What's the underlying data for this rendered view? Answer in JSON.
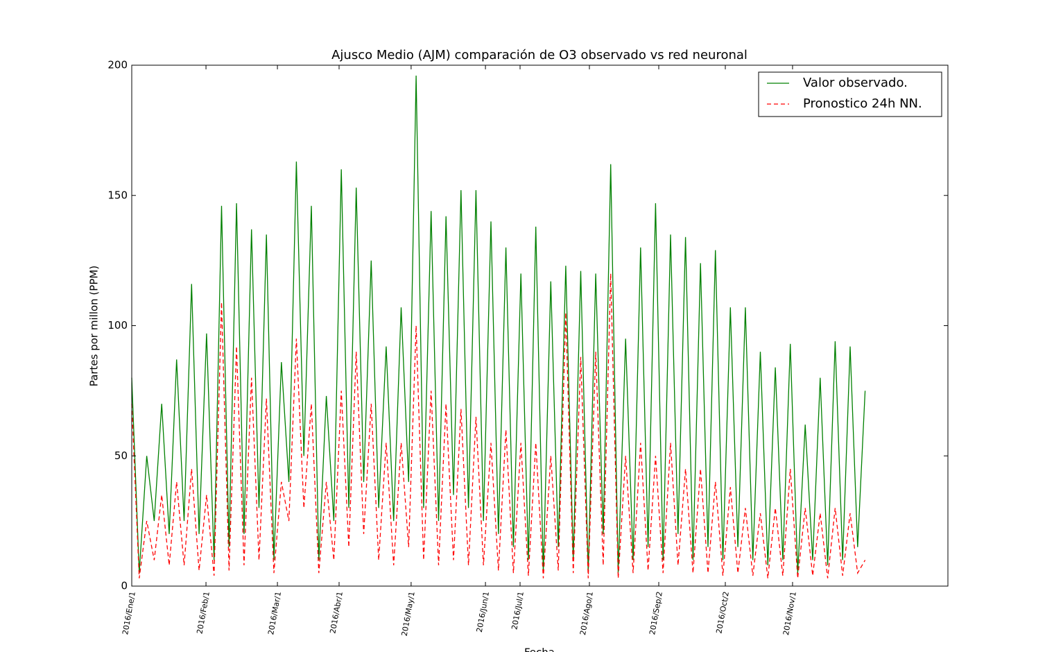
{
  "chart_data": {
    "type": "line",
    "title": "Ajusco Medio (AJM) comparación de O3 observado vs red neuronal",
    "x_label": "Fecha",
    "y_label": "Partes por millon (PPM)",
    "x": [
      0,
      75,
      150,
      225,
      300,
      375,
      450,
      525,
      600,
      675,
      750,
      825,
      900,
      975,
      1050,
      1125,
      1200,
      1275,
      1350,
      1425,
      1500,
      1575,
      1650,
      1725,
      1800,
      1875,
      1950,
      2025,
      2100,
      2175,
      2250,
      2325,
      2400,
      2475,
      2550,
      2625,
      2700,
      2775,
      2850,
      2925,
      3000,
      3075,
      3150,
      3225,
      3300,
      3375,
      3450,
      3525,
      3600,
      3675,
      3750,
      3825,
      3900,
      3975,
      4050,
      4125,
      4200,
      4275,
      4350,
      4425,
      4500,
      4575,
      4650,
      4725,
      4800,
      4875,
      4950,
      5025,
      5100,
      5175,
      5250,
      5325,
      5400,
      5475,
      5550,
      5625,
      5700,
      5775,
      5850,
      5925,
      6000,
      6075,
      6150,
      6225,
      6300,
      6375,
      6450,
      6525,
      6600,
      6675,
      6750,
      6825,
      6900,
      6975,
      7050,
      7125,
      7200,
      7275,
      7350
    ],
    "series": [
      {
        "name": "Valor observado.",
        "color": "#008000",
        "linestyle": "-",
        "values": [
          80,
          5,
          50,
          25,
          70,
          20,
          87,
          25,
          116,
          20,
          97,
          10,
          146,
          15,
          147,
          20,
          137,
          30,
          135,
          10,
          86,
          40,
          163,
          50,
          146,
          10,
          73,
          25,
          160,
          30,
          153,
          40,
          125,
          30,
          92,
          25,
          107,
          40,
          196,
          30,
          144,
          25,
          142,
          35,
          152,
          30,
          152,
          25,
          140,
          20,
          130,
          15,
          120,
          10,
          138,
          5,
          117,
          15,
          123,
          10,
          121,
          5,
          120,
          20,
          162,
          5,
          95,
          10,
          130,
          15,
          147,
          10,
          135,
          20,
          134,
          10,
          124,
          15,
          129,
          10,
          107,
          15,
          107,
          10,
          90,
          8,
          84,
          10,
          93,
          5,
          62,
          10,
          80,
          8,
          94,
          10,
          92,
          15,
          75
        ]
      },
      {
        "name": "Pronostico 24h NN.",
        "color": "#ff0000",
        "linestyle": "--",
        "values": [
          70,
          3,
          25,
          10,
          35,
          8,
          40,
          8,
          45,
          6,
          35,
          4,
          109,
          6,
          92,
          8,
          80,
          10,
          72,
          5,
          40,
          25,
          95,
          30,
          70,
          5,
          40,
          10,
          75,
          15,
          90,
          20,
          70,
          10,
          55,
          8,
          55,
          15,
          100,
          10,
          75,
          8,
          70,
          10,
          68,
          8,
          65,
          8,
          55,
          6,
          60,
          5,
          55,
          4,
          55,
          3,
          50,
          6,
          105,
          5,
          88,
          3,
          90,
          8,
          120,
          3,
          50,
          5,
          55,
          6,
          50,
          5,
          55,
          8,
          45,
          5,
          45,
          5,
          40,
          4,
          38,
          5,
          30,
          4,
          28,
          3,
          30,
          4,
          45,
          3,
          30,
          4,
          28,
          3,
          30,
          4,
          28,
          5,
          10
        ]
      }
    ],
    "xlim": [
      0,
      8180
    ],
    "xticks": [
      {
        "value": 0,
        "label": "2016/Ene/1"
      },
      {
        "value": 744,
        "label": "2016/Feb/1"
      },
      {
        "value": 1460,
        "label": "2016/Mar/1"
      },
      {
        "value": 2078,
        "label": "2016/Abr/1"
      },
      {
        "value": 2800,
        "label": "2016/May/1"
      },
      {
        "value": 3545,
        "label": "2016/Jun/1"
      },
      {
        "value": 3892,
        "label": "2016/Jul/1"
      },
      {
        "value": 4587,
        "label": "2016/Ago/1"
      },
      {
        "value": 5282,
        "label": "2016/Sep/2"
      },
      {
        "value": 5949,
        "label": "2016/Oct/2"
      },
      {
        "value": 6623,
        "label": "2016/Nov/1"
      }
    ],
    "ylim": [
      0,
      200
    ],
    "yticks": [
      0,
      50,
      100,
      150,
      200
    ],
    "legend": "upper right"
  }
}
